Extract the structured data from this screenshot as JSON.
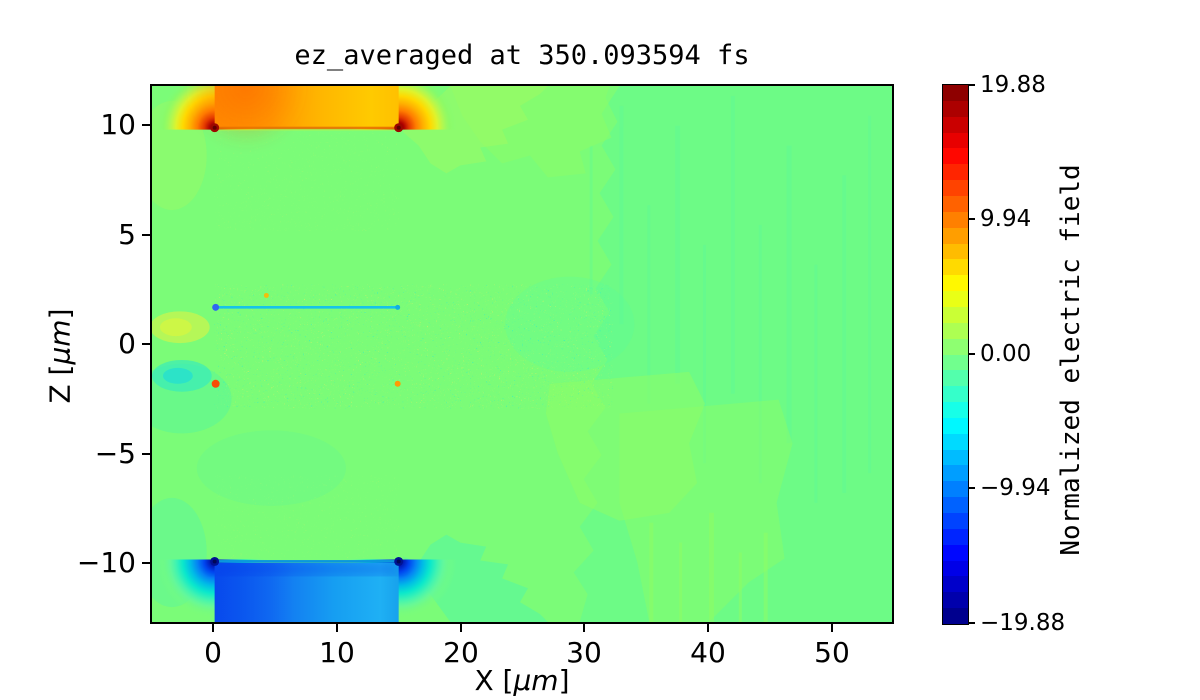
{
  "title": "ez_averaged at 350.093594 fs",
  "x_axis": {
    "label_prefix": "X [",
    "label_unit": "μm",
    "label_suffix": "]",
    "ticks": [
      "0",
      "10",
      "20",
      "30",
      "40",
      "50"
    ]
  },
  "y_axis": {
    "label_prefix": "Z [",
    "label_unit": "μm",
    "label_suffix": "]",
    "ticks": [
      "10",
      "5",
      "0",
      "−5",
      "−10"
    ]
  },
  "colorbar": {
    "label": "Normalized electric field",
    "ticks": [
      "19.88",
      "9.94",
      "0.00",
      "−9.94",
      "−19.88"
    ],
    "colormap": "jet"
  },
  "chart_data": {
    "type": "heatmap",
    "title": "ez_averaged at 350.093594 fs",
    "xlabel": "X [μm]",
    "ylabel": "Z [μm]",
    "xlim": [
      -5,
      55
    ],
    "ylim": [
      -12.8,
      11.9
    ],
    "x_ticks": [
      0,
      10,
      20,
      30,
      40,
      50
    ],
    "y_ticks": [
      10,
      5,
      0,
      -5,
      -10
    ],
    "colormap": "jet",
    "vmin": -19.88,
    "vmax": 19.88,
    "colorbar_label": "Normalized electric field",
    "colorbar_ticks": [
      19.88,
      9.94,
      0.0,
      -9.94,
      -19.88
    ],
    "background_value": 0.0,
    "features": [
      {
        "name": "upper-plate-field",
        "x_range": [
          0,
          15
        ],
        "z_range": [
          10,
          11.9
        ],
        "value": "+8 to +13 (orange/yellow), peaks ~+19.9 (dark red) at plate edges x=0 and x=15, z=10"
      },
      {
        "name": "lower-plate-field",
        "x_range": [
          0,
          15
        ],
        "z_range": [
          -12.8,
          -10
        ],
        "value": "-8 to -14 (blue), peaks ~-19.9 (dark navy) at plate edges x=0 and x=15, z=-10"
      },
      {
        "name": "upper-inner-line",
        "x_range": [
          0,
          15
        ],
        "z": 1.7,
        "value": "~-7 thin cyan line, blue dot at left tip"
      },
      {
        "name": "lower-inner-line",
        "x_range": [
          0,
          15
        ],
        "z": -1.8,
        "value": "~+7 thin yellow-orange line, red-orange dot at left tip"
      },
      {
        "name": "channel-speckle",
        "x_range": [
          0,
          18
        ],
        "z_range": [
          -2,
          2
        ],
        "value": "noisy ±1 speckle on ~0 background"
      },
      {
        "name": "left-positive-blob",
        "x_range": [
          -5,
          -0.5
        ],
        "z_range": [
          0,
          1.5
        ],
        "value": "~+2 yellow-green patch"
      },
      {
        "name": "left-negative-blob",
        "x_range": [
          -5,
          -0.5
        ],
        "z_range": [
          -4,
          -1.5
        ],
        "value": "~-2 cyan-green patch"
      },
      {
        "name": "wake-streaks",
        "x_range": [
          20,
          55
        ],
        "z_range": [
          -12.8,
          11.9
        ],
        "value": "weak alternating ~±0.6 vertical streak bands (two adjacent green contour levels)"
      }
    ]
  }
}
